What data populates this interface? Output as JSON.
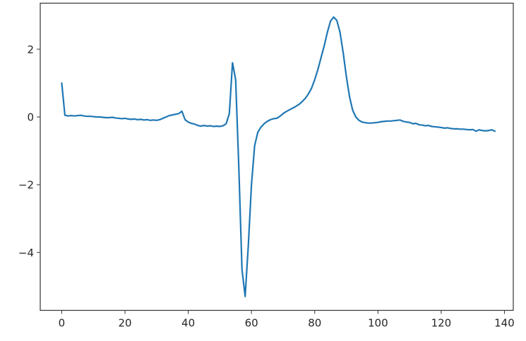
{
  "chart_data": {
    "type": "line",
    "title": "",
    "xlabel": "",
    "ylabel": "",
    "xlim": [
      -6.8,
      142.8
    ],
    "ylim": [
      -5.71,
      3.36
    ],
    "grid": false,
    "legend": "none",
    "xticks": [
      0,
      20,
      40,
      60,
      80,
      100,
      120,
      140
    ],
    "xtick_labels": [
      "0",
      "20",
      "40",
      "60",
      "80",
      "100",
      "120",
      "140"
    ],
    "yticks": [
      2,
      0,
      -2,
      -4
    ],
    "ytick_labels": [
      "2",
      "0",
      "−2",
      "−4"
    ],
    "series": [
      {
        "color": "#1f77b4",
        "x_start": 0,
        "x_step": 1,
        "values": [
          1.0,
          0.05,
          0.03,
          0.04,
          0.03,
          0.04,
          0.05,
          0.03,
          0.02,
          0.02,
          0.01,
          0.0,
          0.0,
          -0.01,
          -0.02,
          -0.02,
          -0.01,
          -0.03,
          -0.04,
          -0.05,
          -0.04,
          -0.06,
          -0.07,
          -0.06,
          -0.08,
          -0.07,
          -0.09,
          -0.08,
          -0.1,
          -0.09,
          -0.1,
          -0.08,
          -0.04,
          0.0,
          0.04,
          0.06,
          0.08,
          0.1,
          0.17,
          -0.08,
          -0.15,
          -0.19,
          -0.21,
          -0.25,
          -0.27,
          -0.25,
          -0.27,
          -0.26,
          -0.28,
          -0.27,
          -0.28,
          -0.26,
          -0.2,
          0.1,
          1.6,
          1.1,
          -1.5,
          -4.5,
          -5.3,
          -3.8,
          -2.0,
          -0.85,
          -0.45,
          -0.3,
          -0.2,
          -0.13,
          -0.08,
          -0.05,
          -0.04,
          0.02,
          0.1,
          0.16,
          0.21,
          0.26,
          0.31,
          0.37,
          0.45,
          0.55,
          0.68,
          0.85,
          1.1,
          1.4,
          1.75,
          2.1,
          2.5,
          2.83,
          2.95,
          2.85,
          2.5,
          1.9,
          1.2,
          0.6,
          0.2,
          0.0,
          -0.1,
          -0.15,
          -0.17,
          -0.18,
          -0.18,
          -0.17,
          -0.16,
          -0.14,
          -0.13,
          -0.12,
          -0.12,
          -0.11,
          -0.1,
          -0.09,
          -0.13,
          -0.15,
          -0.16,
          -0.2,
          -0.19,
          -0.23,
          -0.24,
          -0.26,
          -0.25,
          -0.28,
          -0.29,
          -0.3,
          -0.31,
          -0.33,
          -0.32,
          -0.34,
          -0.35,
          -0.35,
          -0.36,
          -0.36,
          -0.37,
          -0.38,
          -0.37,
          -0.42,
          -0.38,
          -0.4,
          -0.41,
          -0.4,
          -0.38,
          -0.42
        ]
      }
    ]
  }
}
